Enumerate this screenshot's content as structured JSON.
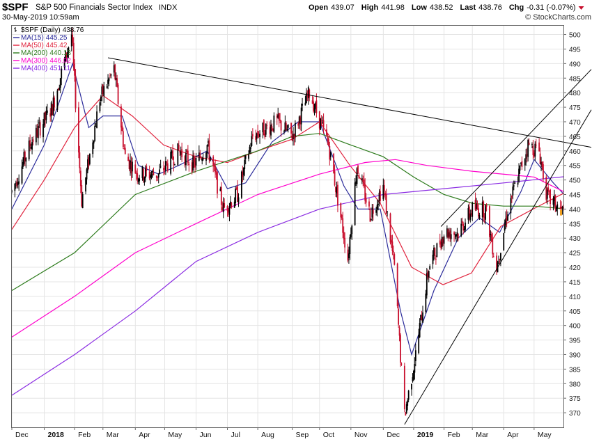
{
  "header": {
    "symbol": "$SPF",
    "name": "S&P 500 Financials Sector Index",
    "exchange": "INDX",
    "date_time": "30-May-2019 10:59am",
    "watermark": "© StockCharts.com",
    "stats": [
      {
        "label": "Open",
        "value": "439.07"
      },
      {
        "label": "High",
        "value": "441.98"
      },
      {
        "label": "Low",
        "value": "438.52"
      },
      {
        "label": "Last",
        "value": "438.76"
      },
      {
        "label": "Chg",
        "value": "-0.31 (-0.07%)"
      }
    ]
  },
  "legend": [
    {
      "label": "$SPF (Daily)",
      "value": "438.76",
      "color": "#000000",
      "kind": "price"
    },
    {
      "label": "MA(15)",
      "value": "445.25",
      "color": "#2b2b9a",
      "kind": "line"
    },
    {
      "label": "MA(50)",
      "value": "445.42",
      "color": "#e0223c",
      "kind": "line"
    },
    {
      "label": "MA(200)",
      "value": "440.13",
      "color": "#2b7a1a",
      "kind": "line"
    },
    {
      "label": "MA(300)",
      "value": "446.02",
      "color": "#ff00cc",
      "kind": "line"
    },
    {
      "label": "MA(400)",
      "value": "451.11",
      "color": "#8a2be2",
      "kind": "line"
    }
  ],
  "chart_data": {
    "type": "candlestick",
    "ylim": [
      365,
      503
    ],
    "y_ticks": [
      370,
      375,
      380,
      385,
      390,
      395,
      400,
      405,
      410,
      415,
      420,
      425,
      430,
      435,
      440,
      445,
      450,
      455,
      460,
      465,
      470,
      475,
      480,
      485,
      490,
      495,
      500
    ],
    "x_labels": [
      "Dec",
      "2018",
      "Feb",
      "Mar",
      "Apr",
      "May",
      "Jun",
      "Jul",
      "Aug",
      "Sep",
      "Oct",
      "Nov",
      "Dec",
      "2019",
      "Feb",
      "Mar",
      "Apr",
      "May"
    ],
    "x_label_bold": [
      "2018",
      "2019"
    ],
    "x_domain": [
      "2017-12-01",
      "2019-05-30"
    ],
    "x_label_dates": [
      "2017-12-01",
      "2018-01-02",
      "2018-02-01",
      "2018-03-01",
      "2018-04-02",
      "2018-05-01",
      "2018-06-01",
      "2018-07-02",
      "2018-08-01",
      "2018-09-04",
      "2018-10-01",
      "2018-11-01",
      "2018-12-03",
      "2019-01-02",
      "2019-02-01",
      "2019-03-01",
      "2019-04-01",
      "2019-05-01"
    ],
    "price_path": [
      [
        "2017-12-01",
        446
      ],
      [
        "2017-12-20",
        463
      ],
      [
        "2018-01-10",
        475
      ],
      [
        "2018-01-29",
        500
      ],
      [
        "2018-02-08",
        443
      ],
      [
        "2018-02-26",
        478
      ],
      [
        "2018-03-12",
        488
      ],
      [
        "2018-03-23",
        458
      ],
      [
        "2018-04-05",
        452
      ],
      [
        "2018-04-25",
        452
      ],
      [
        "2018-05-15",
        460
      ],
      [
        "2018-05-30",
        455
      ],
      [
        "2018-06-12",
        462
      ],
      [
        "2018-06-28",
        440
      ],
      [
        "2018-07-12",
        445
      ],
      [
        "2018-07-27",
        465
      ],
      [
        "2018-08-20",
        470
      ],
      [
        "2018-09-04",
        465
      ],
      [
        "2018-09-21",
        480
      ],
      [
        "2018-10-10",
        462
      ],
      [
        "2018-10-29",
        423
      ],
      [
        "2018-11-07",
        455
      ],
      [
        "2018-11-20",
        438
      ],
      [
        "2018-12-03",
        448
      ],
      [
        "2018-12-14",
        420
      ],
      [
        "2018-12-24",
        369
      ],
      [
        "2019-01-04",
        390
      ],
      [
        "2019-01-17",
        420
      ],
      [
        "2019-02-01",
        432
      ],
      [
        "2019-02-15",
        432
      ],
      [
        "2019-03-01",
        440
      ],
      [
        "2019-03-14",
        440
      ],
      [
        "2019-03-25",
        420
      ],
      [
        "2019-04-05",
        440
      ],
      [
        "2019-04-25",
        462
      ],
      [
        "2019-05-06",
        460
      ],
      [
        "2019-05-14",
        444
      ],
      [
        "2019-05-30",
        438.76
      ]
    ],
    "series": [
      {
        "name": "MA(15)",
        "color": "#2b2b9a",
        "points": [
          [
            "2017-12-01",
            440
          ],
          [
            "2018-01-02",
            462
          ],
          [
            "2018-01-30",
            490
          ],
          [
            "2018-02-15",
            468
          ],
          [
            "2018-03-01",
            472
          ],
          [
            "2018-03-20",
            472
          ],
          [
            "2018-04-05",
            455
          ],
          [
            "2018-04-25",
            452
          ],
          [
            "2018-05-15",
            455
          ],
          [
            "2018-06-12",
            460
          ],
          [
            "2018-07-02",
            447
          ],
          [
            "2018-07-20",
            449
          ],
          [
            "2018-08-15",
            463
          ],
          [
            "2018-09-10",
            470
          ],
          [
            "2018-10-01",
            470
          ],
          [
            "2018-10-25",
            448
          ],
          [
            "2018-11-08",
            440
          ],
          [
            "2018-11-30",
            440
          ],
          [
            "2018-12-20",
            405
          ],
          [
            "2018-12-31",
            390
          ],
          [
            "2019-01-22",
            412
          ],
          [
            "2019-02-15",
            430
          ],
          [
            "2019-03-08",
            437
          ],
          [
            "2019-03-28",
            432
          ],
          [
            "2019-04-18",
            446
          ],
          [
            "2019-05-01",
            457
          ],
          [
            "2019-05-20",
            449
          ],
          [
            "2019-05-30",
            445.25
          ]
        ]
      },
      {
        "name": "MA(50)",
        "color": "#e0223c",
        "points": [
          [
            "2017-12-01",
            433
          ],
          [
            "2018-01-02",
            450
          ],
          [
            "2018-02-01",
            468
          ],
          [
            "2018-03-01",
            479
          ],
          [
            "2018-03-30",
            472
          ],
          [
            "2018-04-30",
            462
          ],
          [
            "2018-06-01",
            458
          ],
          [
            "2018-07-02",
            456
          ],
          [
            "2018-08-01",
            460
          ],
          [
            "2018-09-04",
            464
          ],
          [
            "2018-10-01",
            470
          ],
          [
            "2018-10-31",
            455
          ],
          [
            "2018-11-30",
            442
          ],
          [
            "2018-12-31",
            420
          ],
          [
            "2019-01-31",
            414
          ],
          [
            "2019-02-28",
            418
          ],
          [
            "2019-03-29",
            434
          ],
          [
            "2019-04-30",
            440
          ],
          [
            "2019-05-30",
            445.42
          ]
        ]
      },
      {
        "name": "MA(200)",
        "color": "#2b7a1a",
        "points": [
          [
            "2017-12-01",
            412
          ],
          [
            "2018-02-01",
            425
          ],
          [
            "2018-04-02",
            445
          ],
          [
            "2018-06-01",
            453
          ],
          [
            "2018-08-01",
            460
          ],
          [
            "2018-09-04",
            465
          ],
          [
            "2018-10-01",
            466
          ],
          [
            "2018-11-01",
            462
          ],
          [
            "2018-12-03",
            458
          ],
          [
            "2019-01-02",
            451
          ],
          [
            "2019-02-01",
            445
          ],
          [
            "2019-03-01",
            442
          ],
          [
            "2019-04-01",
            441
          ],
          [
            "2019-05-01",
            441
          ],
          [
            "2019-05-30",
            440.13
          ]
        ]
      },
      {
        "name": "MA(300)",
        "color": "#ff00cc",
        "points": [
          [
            "2017-12-01",
            396
          ],
          [
            "2018-02-01",
            410
          ],
          [
            "2018-04-02",
            425
          ],
          [
            "2018-06-01",
            435
          ],
          [
            "2018-08-01",
            445
          ],
          [
            "2018-10-01",
            452
          ],
          [
            "2018-11-15",
            456
          ],
          [
            "2018-12-15",
            457
          ],
          [
            "2019-01-15",
            455
          ],
          [
            "2019-03-01",
            453
          ],
          [
            "2019-05-01",
            451
          ],
          [
            "2019-05-30",
            446.02
          ]
        ]
      },
      {
        "name": "MA(400)",
        "color": "#8a2be2",
        "points": [
          [
            "2017-12-01",
            376
          ],
          [
            "2018-02-01",
            390
          ],
          [
            "2018-04-02",
            405
          ],
          [
            "2018-06-01",
            422
          ],
          [
            "2018-08-01",
            432
          ],
          [
            "2018-10-01",
            440
          ],
          [
            "2018-12-03",
            445
          ],
          [
            "2019-02-01",
            447
          ],
          [
            "2019-04-01",
            449
          ],
          [
            "2019-05-30",
            451.11
          ]
        ]
      }
    ],
    "trendlines": [
      {
        "color": "#000000",
        "from": [
          "2018-03-06",
          492
        ],
        "to": [
          "2019-05-30",
          463
        ]
      },
      {
        "color": "#000000",
        "from": [
          "2019-01-29",
          434
        ],
        "to": [
          "2019-05-30",
          478
        ]
      },
      {
        "color": "#000000",
        "from": [
          "2018-12-24",
          366
        ],
        "to": [
          "2019-05-30",
          458
        ]
      }
    ],
    "last_marker": {
      "value": 438.76,
      "color": "#f0a020"
    }
  }
}
